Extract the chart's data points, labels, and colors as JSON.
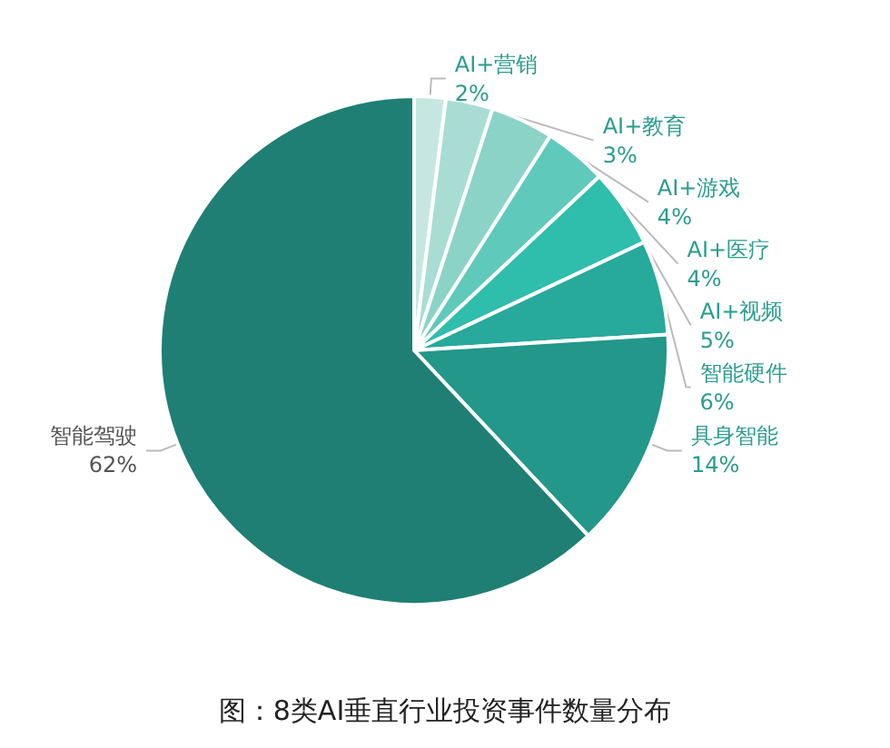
{
  "chart_data": {
    "type": "pie",
    "title": "图：8类AI垂直行业投资事件数量分布",
    "categories": [
      "AI+营销",
      "AI+教育",
      "AI+游戏",
      "AI+医疗",
      "AI+视频",
      "智能硬件",
      "具身智能",
      "智能驾驶"
    ],
    "values": [
      2,
      3,
      4,
      4,
      5,
      6,
      14,
      62
    ],
    "value_labels": [
      "2%",
      "3%",
      "4%",
      "4%",
      "5%",
      "6%",
      "14%",
      "62%"
    ],
    "colors": [
      "#c6e7e1",
      "#a9ddd4",
      "#8bd3c7",
      "#5fc9bb",
      "#2fbdac",
      "#27a99b",
      "#22978a",
      "#1f7f74"
    ],
    "legend": false
  }
}
